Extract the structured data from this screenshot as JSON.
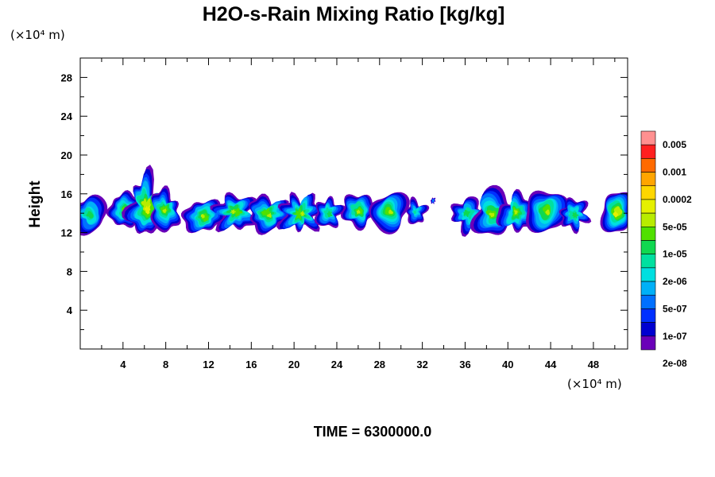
{
  "chart_data": {
    "type": "heatmap",
    "title": "H2O-s-Rain Mixing Ratio [kg/kg]",
    "ylabel": "Height",
    "x_unit_label": "(×10⁴ m)",
    "y_unit_label": "(×10⁴ m)",
    "time_label": "TIME = 6300000.0",
    "xlim": [
      0,
      51.2
    ],
    "ylim": [
      0,
      30
    ],
    "xticks": [
      4,
      8,
      12,
      16,
      20,
      24,
      28,
      32,
      36,
      40,
      44,
      48
    ],
    "yticks": [
      4,
      8,
      12,
      16,
      20,
      24,
      28
    ],
    "xtick_labels": [
      "4",
      "8",
      "12",
      "16",
      "20",
      "24",
      "28",
      "32",
      "36",
      "40",
      "44",
      "48"
    ],
    "ytick_labels": [
      "4",
      "8",
      "12",
      "16",
      "20",
      "24",
      "28"
    ],
    "colorbar": {
      "labels": [
        "0.005",
        "0.001",
        "0.0002",
        "5e-05",
        "1e-05",
        "2e-06",
        "5e-07",
        "1e-07",
        "2e-08"
      ],
      "colors": [
        "#ff9090",
        "#ff2020",
        "#ff6a00",
        "#ffa500",
        "#ffd700",
        "#e5f000",
        "#b8ec00",
        "#50e000",
        "#10d850",
        "#00e0a0",
        "#00dfe0",
        "#00b0f8",
        "#0070ff",
        "#0030ff",
        "#0000d0",
        "#6a00b8"
      ]
    },
    "clouds": [
      {
        "x": 0.9,
        "y": 13.9,
        "w": 3.3,
        "h": 3.6,
        "core": 2
      },
      {
        "x": 4.2,
        "y": 14.3,
        "w": 3.0,
        "h": 3.5,
        "core": 3
      },
      {
        "x": 6.2,
        "y": 14.6,
        "w": 3.4,
        "h": 5.8,
        "core": 4
      },
      {
        "x": 7.9,
        "y": 14.2,
        "w": 2.8,
        "h": 4.0,
        "core": 3
      },
      {
        "x": 11.5,
        "y": 13.7,
        "w": 3.6,
        "h": 3.4,
        "core": 3
      },
      {
        "x": 14.5,
        "y": 14.1,
        "w": 3.6,
        "h": 3.6,
        "core": 3
      },
      {
        "x": 17.6,
        "y": 13.9,
        "w": 3.8,
        "h": 3.5,
        "core": 3
      },
      {
        "x": 20.6,
        "y": 14.0,
        "w": 3.5,
        "h": 3.8,
        "core": 3
      },
      {
        "x": 23.2,
        "y": 14.0,
        "w": 2.4,
        "h": 3.0,
        "core": 2
      },
      {
        "x": 26.0,
        "y": 14.3,
        "w": 3.0,
        "h": 3.4,
        "core": 3
      },
      {
        "x": 28.9,
        "y": 14.1,
        "w": 3.6,
        "h": 3.9,
        "core": 3
      },
      {
        "x": 31.4,
        "y": 14.1,
        "w": 1.8,
        "h": 2.4,
        "core": 1
      },
      {
        "x": 33.0,
        "y": 15.3,
        "w": 0.4,
        "h": 0.6,
        "core": 0
      },
      {
        "x": 36.3,
        "y": 13.9,
        "w": 3.0,
        "h": 3.2,
        "core": 2
      },
      {
        "x": 38.6,
        "y": 14.0,
        "w": 3.8,
        "h": 4.4,
        "core": 3
      },
      {
        "x": 40.8,
        "y": 14.0,
        "w": 3.0,
        "h": 3.8,
        "core": 3
      },
      {
        "x": 43.6,
        "y": 14.2,
        "w": 3.8,
        "h": 4.6,
        "core": 3
      },
      {
        "x": 46.2,
        "y": 13.9,
        "w": 2.6,
        "h": 3.0,
        "core": 2
      },
      {
        "x": 50.2,
        "y": 14.1,
        "w": 3.0,
        "h": 4.2,
        "core": 4
      }
    ]
  }
}
